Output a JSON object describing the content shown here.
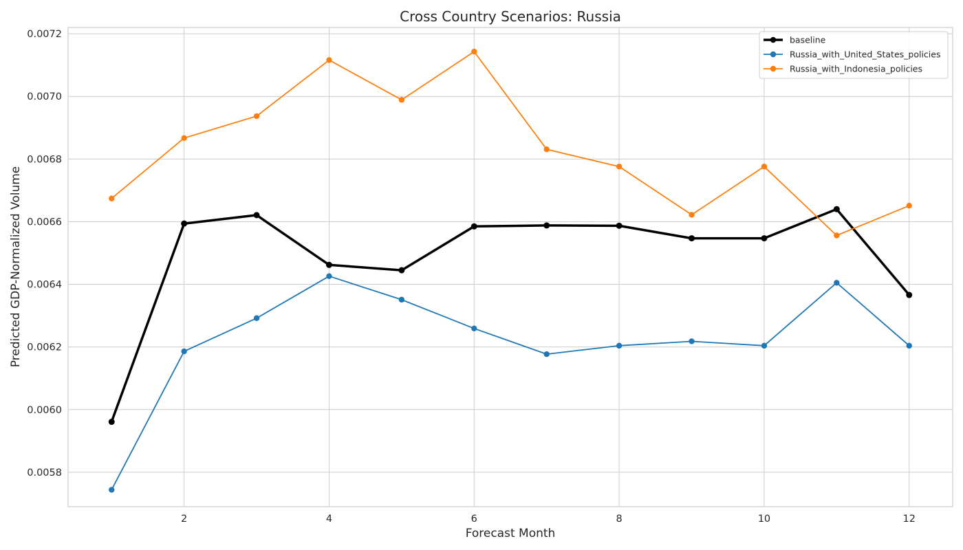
{
  "chart_data": {
    "type": "line",
    "title": "Cross Country Scenarios: Russia",
    "xlabel": "Forecast Month",
    "ylabel": "Predicted GDP-Normalized Volume",
    "x": [
      1,
      2,
      3,
      4,
      5,
      6,
      7,
      8,
      9,
      10,
      11,
      12
    ],
    "xlim": [
      0.4,
      12.6
    ],
    "ylim": [
      0.00569,
      0.00722
    ],
    "xticks": [
      2,
      4,
      6,
      8,
      10,
      12
    ],
    "yticks": [
      0.0058,
      0.006,
      0.0062,
      0.0064,
      0.0066,
      0.0068,
      0.007,
      0.0072
    ],
    "ytick_labels": [
      "0.0058",
      "0.0060",
      "0.0062",
      "0.0064",
      "0.0066",
      "0.0068",
      "0.0070",
      "0.0072"
    ],
    "grid": true,
    "legend_position": "top-right",
    "series": [
      {
        "name": "baseline",
        "color": "#000000",
        "linewidth": 3.5,
        "values": [
          0.005961,
          0.006594,
          0.006621,
          0.006462,
          0.006445,
          0.006585,
          0.006588,
          0.006587,
          0.006547,
          0.006547,
          0.00664,
          0.006366
        ]
      },
      {
        "name": "Russia_with_United_States_policies",
        "color": "#1f77b4",
        "linewidth": 1.8,
        "values": [
          0.005744,
          0.006186,
          0.006292,
          0.006426,
          0.006351,
          0.006259,
          0.006177,
          0.006204,
          0.006218,
          0.006204,
          0.006405,
          0.006204
        ]
      },
      {
        "name": "Russia_with_Indonesia_policies",
        "color": "#ff7f0e",
        "linewidth": 1.8,
        "values": [
          0.006674,
          0.006867,
          0.006937,
          0.007116,
          0.006989,
          0.007143,
          0.006831,
          0.006776,
          0.006622,
          0.006776,
          0.006556,
          0.006651
        ]
      }
    ]
  }
}
